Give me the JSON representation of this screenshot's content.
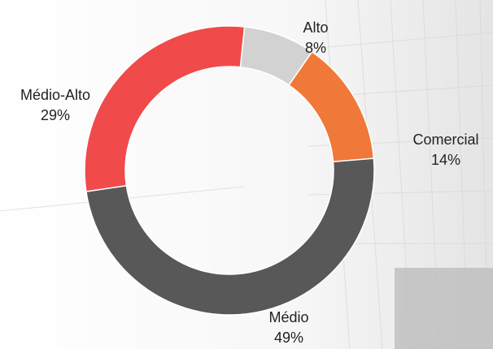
{
  "chart_data": {
    "type": "donut",
    "categories": [
      "Alto",
      "Comercial",
      "Médio",
      "Médio-Alto"
    ],
    "values": [
      8,
      14,
      49,
      29
    ],
    "value_labels": [
      "8%",
      "14%",
      "49%",
      "29%"
    ],
    "colors": [
      "#d2d2d2",
      "#f07838",
      "#585858",
      "#f04a4a"
    ]
  }
}
